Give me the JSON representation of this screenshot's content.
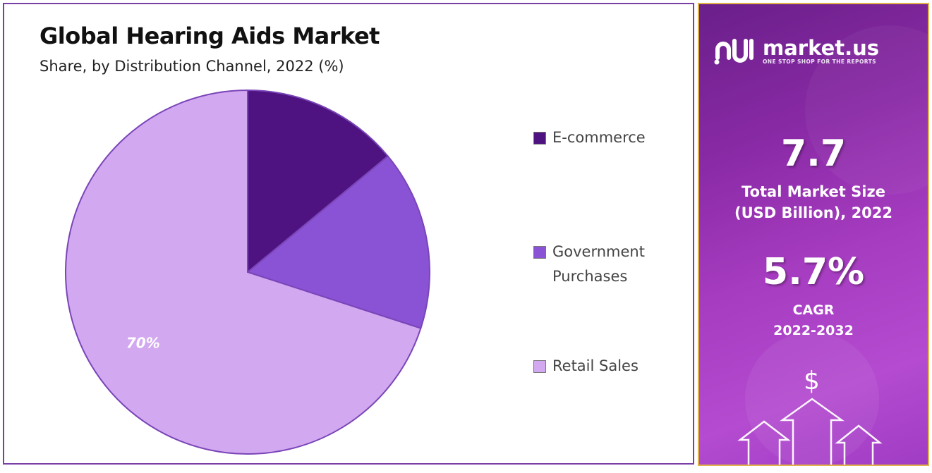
{
  "chart_data": {
    "type": "pie",
    "title": "Global Hearing Aids Market",
    "subtitle": "Share, by Distribution Channel, 2022 (%)",
    "slices": [
      {
        "label": "E-commerce",
        "value": 14,
        "color": "#4e1380"
      },
      {
        "label": "Government Purchases",
        "value": 16,
        "color": "#8a52d4"
      },
      {
        "label": "Retail Sales",
        "value": 70,
        "color": "#d2a8f0",
        "data_label": "70%"
      }
    ],
    "legend_position": "right"
  },
  "brand": {
    "name": "market.us",
    "tagline": "ONE STOP SHOP FOR THE REPORTS",
    "accent": "#9b35c0"
  },
  "stats": {
    "market_size_value": "7.7",
    "market_size_label_line1": "Total Market Size",
    "market_size_label_line2": "(USD Billion), 2022",
    "cagr_value": "5.7%",
    "cagr_label_line1": "CAGR",
    "cagr_label_line2": "2022-2032"
  },
  "decoration": {
    "currency_symbol": "$",
    "icons": [
      "dollar-icon",
      "up-arrow-icon"
    ]
  }
}
